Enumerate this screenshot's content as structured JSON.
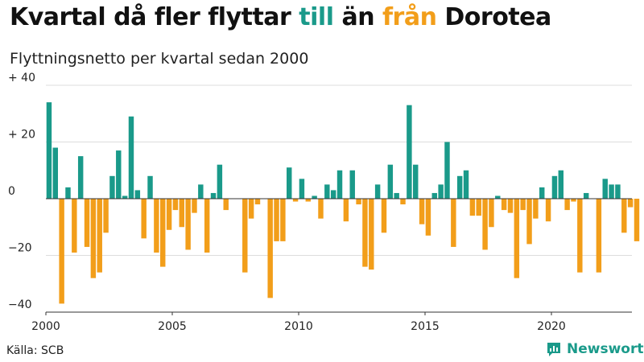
{
  "title": {
    "part1": "Kvartal då fler flyttar ",
    "part2": "till",
    "part3": " än ",
    "part4": "från",
    "part5": " Dorotea"
  },
  "subtitle": "Flyttningsnetto per kvartal sedan 2000",
  "source": "Källa: SCB",
  "brand": "Newsworthy",
  "colors": {
    "positive": "#1a9a8a",
    "negative": "#f29e1a",
    "grid": "#dddddd",
    "axis": "#333333"
  },
  "chart_data": {
    "type": "bar",
    "x_tick_labels": [
      "2000",
      "2005",
      "2010",
      "2015",
      "2020"
    ],
    "y_tick_labels": [
      "+ 40",
      "+ 20",
      "0",
      "−20",
      "−40"
    ],
    "y_ticks": [
      40,
      20,
      0,
      -20,
      -40
    ],
    "ylim": [
      -40,
      40
    ],
    "start": "2000 Q1",
    "values": [
      34,
      18,
      -37,
      4,
      -19,
      15,
      -17,
      -28,
      -26,
      -12,
      8,
      17,
      1,
      29,
      3,
      -14,
      8,
      -19,
      -24,
      -11,
      -4,
      -10,
      -18,
      -5,
      5,
      -19,
      2,
      12,
      -4,
      0,
      0,
      -26,
      -7,
      -2,
      0,
      -35,
      -15,
      -15,
      11,
      -1,
      7,
      -1,
      1,
      -7,
      5,
      3,
      10,
      -8,
      10,
      -2,
      -24,
      -25,
      5,
      -12,
      12,
      2,
      -2,
      33,
      12,
      -9,
      -13,
      2,
      5,
      20,
      -17,
      8,
      10,
      -6,
      -6,
      -18,
      -10,
      1,
      -4,
      -5,
      -28,
      -4,
      -16,
      -7,
      4,
      -8,
      8,
      10,
      -4,
      -1,
      -26,
      2,
      0,
      -26,
      7,
      5,
      5,
      -12,
      -3,
      -15
    ]
  }
}
